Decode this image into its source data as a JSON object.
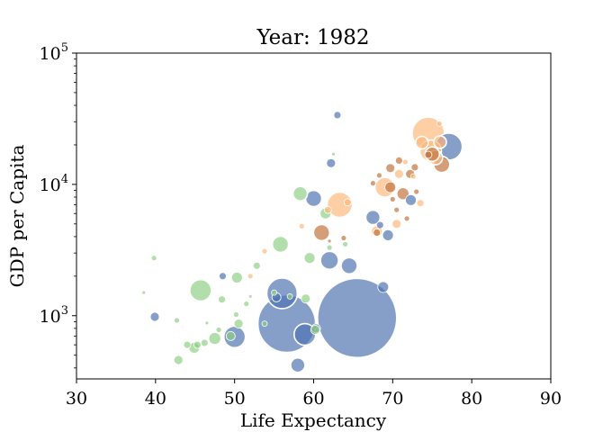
{
  "chart_data": {
    "type": "scatter",
    "title": "Year: 1982",
    "xlabel": "Life Expectancy",
    "ylabel": "GDP per Capita",
    "xlim": [
      30,
      90
    ],
    "ylim": [
      330,
      100000
    ],
    "yscale": "log",
    "xticks": [
      "30",
      "40",
      "50",
      "60",
      "70",
      "80",
      "90"
    ],
    "yticks": [
      {
        "value": 1000,
        "base": "10",
        "exp": "3"
      },
      {
        "value": 10000,
        "base": "10",
        "exp": "4"
      },
      {
        "value": 100000,
        "base": "10",
        "exp": "5"
      }
    ],
    "grid": false,
    "legend": "none",
    "colors": {
      "asia": "#4c72b0",
      "africa": "#8ccf82",
      "europe": "#fdb87a",
      "americas": "#c0703a",
      "edge": "#ffffff"
    },
    "series": [
      {
        "group": "asia",
        "points": [
          {
            "x": 65.5,
            "y": 960,
            "s": 44
          },
          {
            "x": 56.6,
            "y": 870,
            "s": 32
          },
          {
            "x": 56.0,
            "y": 1480,
            "s": 17
          },
          {
            "x": 58.9,
            "y": 720,
            "s": 12
          },
          {
            "x": 50.0,
            "y": 690,
            "s": 12
          },
          {
            "x": 62.0,
            "y": 2640,
            "s": 10
          },
          {
            "x": 64.5,
            "y": 2400,
            "s": 9
          },
          {
            "x": 77.1,
            "y": 19400,
            "s": 15
          },
          {
            "x": 60.0,
            "y": 7800,
            "s": 9
          },
          {
            "x": 67.5,
            "y": 5600,
            "s": 8
          },
          {
            "x": 58.0,
            "y": 420,
            "s": 8
          },
          {
            "x": 68.8,
            "y": 1650,
            "s": 6
          },
          {
            "x": 62.2,
            "y": 14500,
            "s": 5
          },
          {
            "x": 63.0,
            "y": 33700,
            "s": 4
          },
          {
            "x": 39.9,
            "y": 980,
            "s": 5
          },
          {
            "x": 69.4,
            "y": 4100,
            "s": 6
          },
          {
            "x": 72.3,
            "y": 7600,
            "s": 6
          },
          {
            "x": 68.4,
            "y": 4900,
            "s": 4
          },
          {
            "x": 48.5,
            "y": 2000,
            "s": 4
          },
          {
            "x": 60.3,
            "y": 800,
            "s": 5
          },
          {
            "x": 55.3,
            "y": 1380,
            "s": 5
          }
        ]
      },
      {
        "group": "africa",
        "points": [
          {
            "x": 45.7,
            "y": 1560,
            "s": 12
          },
          {
            "x": 55.8,
            "y": 3500,
            "s": 9
          },
          {
            "x": 58.3,
            "y": 8500,
            "s": 8
          },
          {
            "x": 47.5,
            "y": 670,
            "s": 7
          },
          {
            "x": 59.5,
            "y": 2750,
            "s": 6
          },
          {
            "x": 50.3,
            "y": 1950,
            "s": 6
          },
          {
            "x": 61.5,
            "y": 6000,
            "s": 6
          },
          {
            "x": 59.0,
            "y": 1350,
            "s": 5
          },
          {
            "x": 60.2,
            "y": 780,
            "s": 5
          },
          {
            "x": 44.9,
            "y": 570,
            "s": 6
          },
          {
            "x": 49.5,
            "y": 700,
            "s": 5
          },
          {
            "x": 50.5,
            "y": 870,
            "s": 5
          },
          {
            "x": 42.9,
            "y": 460,
            "s": 5
          },
          {
            "x": 44.0,
            "y": 600,
            "s": 4
          },
          {
            "x": 45.3,
            "y": 600,
            "s": 4
          },
          {
            "x": 46.2,
            "y": 620,
            "s": 4
          },
          {
            "x": 48.4,
            "y": 1330,
            "s": 4
          },
          {
            "x": 52.8,
            "y": 2400,
            "s": 4
          },
          {
            "x": 39.8,
            "y": 2750,
            "s": 3
          },
          {
            "x": 42.7,
            "y": 920,
            "s": 3
          },
          {
            "x": 51.5,
            "y": 1230,
            "s": 3
          },
          {
            "x": 55.0,
            "y": 1500,
            "s": 3
          },
          {
            "x": 53.8,
            "y": 870,
            "s": 3
          },
          {
            "x": 57.0,
            "y": 1400,
            "s": 3
          },
          {
            "x": 62.0,
            "y": 3300,
            "s": 3
          },
          {
            "x": 64.0,
            "y": 3500,
            "s": 3
          },
          {
            "x": 38.5,
            "y": 1500,
            "s": 2
          },
          {
            "x": 46.5,
            "y": 880,
            "s": 2
          },
          {
            "x": 50.2,
            "y": 1020,
            "s": 3
          },
          {
            "x": 48.0,
            "y": 780,
            "s": 3
          },
          {
            "x": 52.0,
            "y": 1400,
            "s": 2
          },
          {
            "x": 62.5,
            "y": 17000,
            "s": 2
          }
        ]
      },
      {
        "group": "europe",
        "points": [
          {
            "x": 74.5,
            "y": 24500,
            "s": 18
          },
          {
            "x": 74.8,
            "y": 18000,
            "s": 12
          },
          {
            "x": 63.3,
            "y": 7000,
            "s": 14
          },
          {
            "x": 69.0,
            "y": 9500,
            "s": 11
          },
          {
            "x": 75.4,
            "y": 16000,
            "s": 8
          },
          {
            "x": 76.0,
            "y": 21000,
            "s": 7
          },
          {
            "x": 73.7,
            "y": 20800,
            "s": 7
          },
          {
            "x": 70.5,
            "y": 5000,
            "s": 5
          },
          {
            "x": 70.8,
            "y": 12000,
            "s": 5
          },
          {
            "x": 68.0,
            "y": 4400,
            "s": 6
          },
          {
            "x": 73.5,
            "y": 7200,
            "s": 4
          },
          {
            "x": 75.9,
            "y": 29000,
            "s": 3
          },
          {
            "x": 71.6,
            "y": 14800,
            "s": 3
          },
          {
            "x": 72.6,
            "y": 11500,
            "s": 3
          },
          {
            "x": 64.3,
            "y": 7300,
            "s": 4
          },
          {
            "x": 58.5,
            "y": 4800,
            "s": 3
          },
          {
            "x": 53.8,
            "y": 3100,
            "s": 3
          },
          {
            "x": 52.0,
            "y": 2000,
            "s": 3
          },
          {
            "x": 61.8,
            "y": 6400,
            "s": 4
          }
        ]
      },
      {
        "group": "americas",
        "points": [
          {
            "x": 76.2,
            "y": 14200,
            "s": 9
          },
          {
            "x": 61.0,
            "y": 4300,
            "s": 9
          },
          {
            "x": 75.0,
            "y": 17000,
            "s": 8
          },
          {
            "x": 71.3,
            "y": 8500,
            "s": 7
          },
          {
            "x": 69.7,
            "y": 9500,
            "s": 6
          },
          {
            "x": 72.2,
            "y": 12000,
            "s": 5
          },
          {
            "x": 69.7,
            "y": 13300,
            "s": 5
          },
          {
            "x": 70.8,
            "y": 15200,
            "s": 4
          },
          {
            "x": 72.8,
            "y": 13500,
            "s": 4
          },
          {
            "x": 68.0,
            "y": 4300,
            "s": 4
          },
          {
            "x": 68.3,
            "y": 11700,
            "s": 3
          },
          {
            "x": 67.5,
            "y": 10200,
            "s": 3
          },
          {
            "x": 70.0,
            "y": 7700,
            "s": 3
          },
          {
            "x": 70.5,
            "y": 6400,
            "s": 3
          },
          {
            "x": 71.8,
            "y": 5500,
            "s": 3
          },
          {
            "x": 63.8,
            "y": 3900,
            "s": 3
          },
          {
            "x": 74.5,
            "y": 16800,
            "s": 4
          },
          {
            "x": 73.0,
            "y": 8800,
            "s": 3
          },
          {
            "x": 62.0,
            "y": 3700,
            "s": 2
          }
        ]
      }
    ]
  }
}
